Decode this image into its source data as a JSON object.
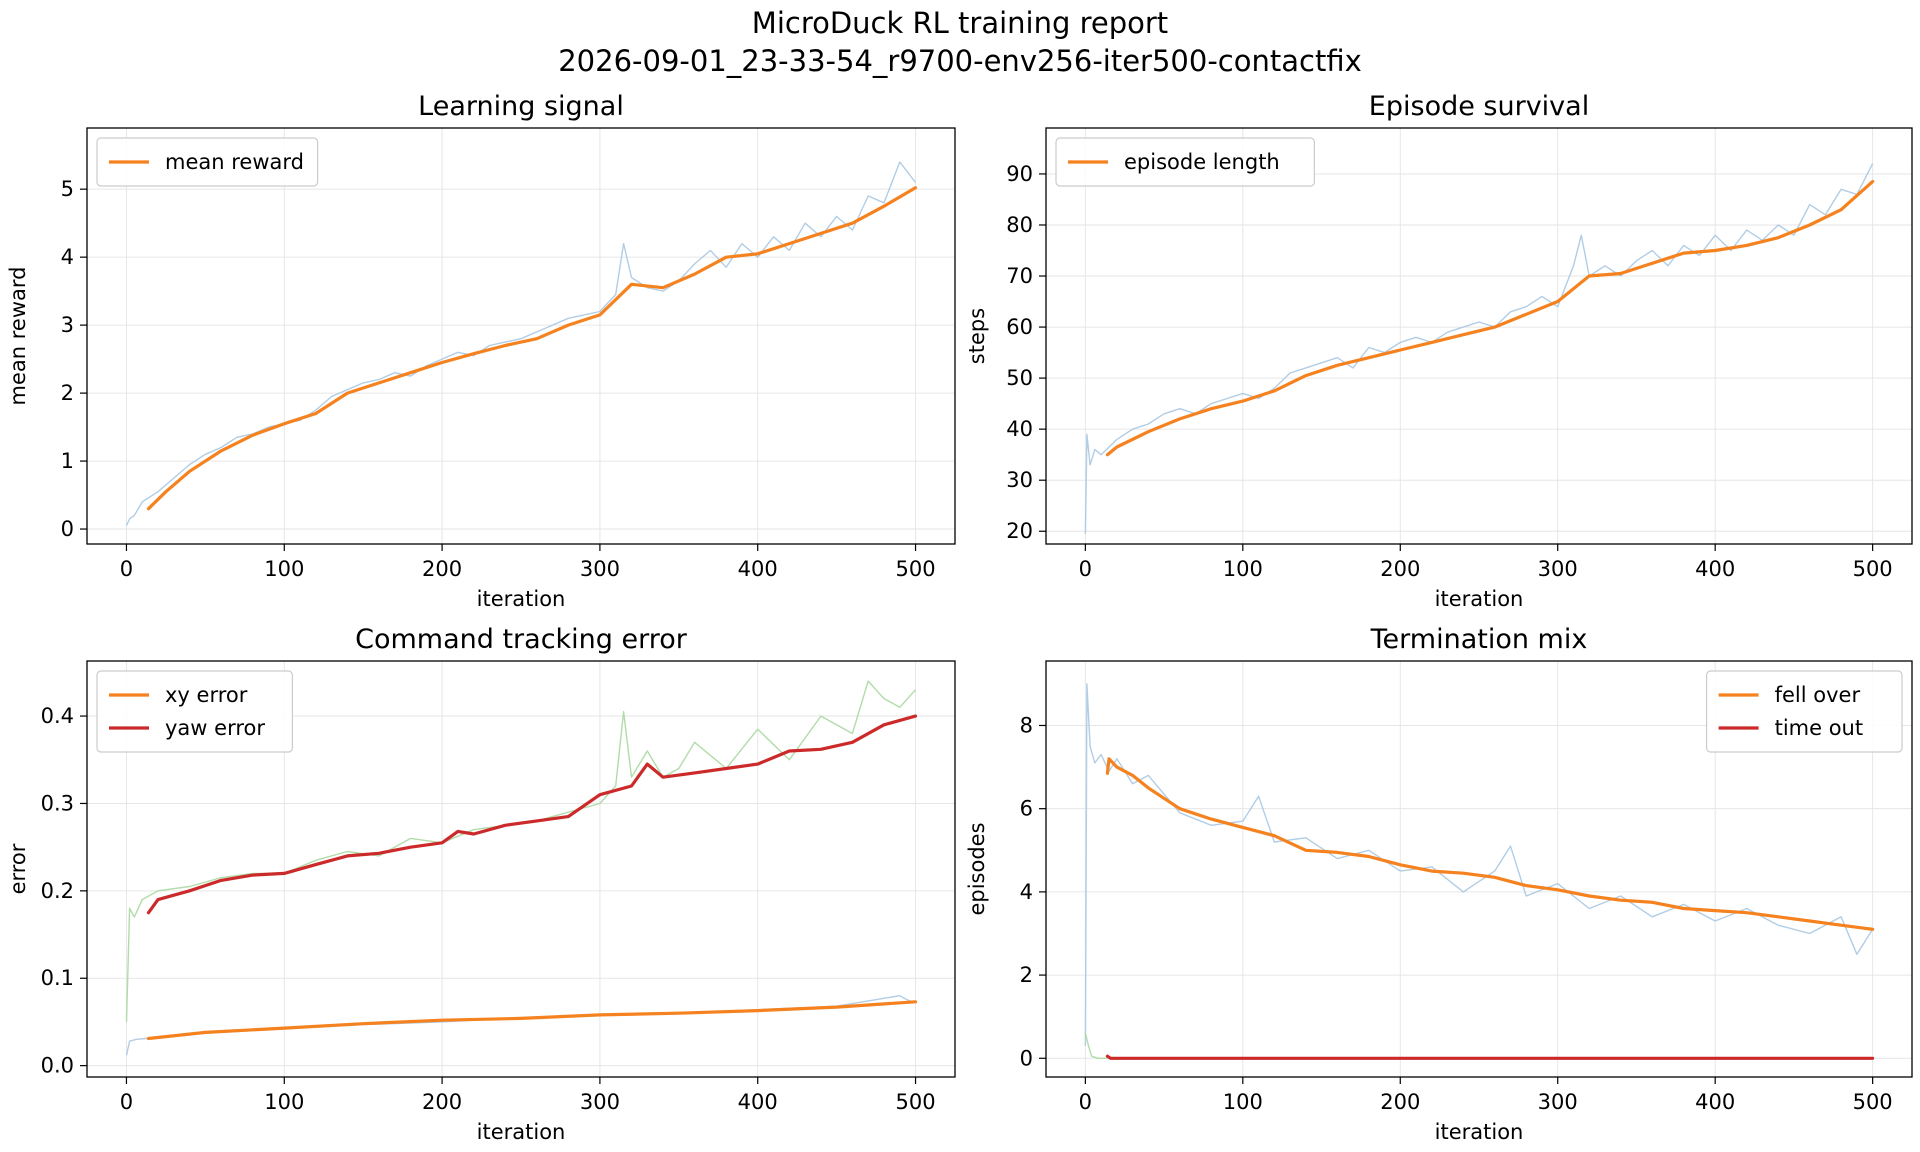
{
  "suptitle_line1": "MicroDuck RL training report",
  "suptitle_line2": "2026-09-01_23-33-54_r9700-env256-iter500-contactfix",
  "colors": {
    "orange": "#f5821f",
    "red": "#cc2a2a",
    "raw_blue": "#a8c8e2",
    "raw_green": "#a8d8a0",
    "grid": "#e6e6e6",
    "axis": "#000000"
  },
  "chart_data": [
    {
      "type": "line",
      "title": "Learning signal",
      "xlabel": "iteration",
      "ylabel": "mean reward",
      "xlim": [
        -25,
        525
      ],
      "ylim": [
        -0.22,
        5.9
      ],
      "xticks": [
        0,
        100,
        200,
        300,
        400,
        500
      ],
      "yticks": [
        0,
        1,
        2,
        3,
        4,
        5
      ],
      "grid": true,
      "legend": "top-left",
      "series": [
        {
          "name": "mean reward",
          "role": "smoothed",
          "color": "orange",
          "x": [
            14,
            25,
            40,
            60,
            80,
            100,
            120,
            140,
            160,
            180,
            200,
            220,
            240,
            260,
            280,
            300,
            320,
            340,
            360,
            380,
            400,
            420,
            440,
            460,
            480,
            500
          ],
          "y": [
            0.3,
            0.55,
            0.85,
            1.15,
            1.38,
            1.55,
            1.7,
            2.0,
            2.15,
            2.3,
            2.45,
            2.58,
            2.7,
            2.8,
            3.0,
            3.15,
            3.6,
            3.55,
            3.75,
            4.0,
            4.05,
            4.2,
            4.35,
            4.5,
            4.75,
            5.02
          ]
        }
      ],
      "raw": {
        "color": "raw_blue",
        "start": [
          0,
          0.05
        ],
        "x": [
          2,
          5,
          10,
          20,
          30,
          40,
          50,
          60,
          70,
          80,
          90,
          100,
          110,
          120,
          130,
          140,
          150,
          160,
          170,
          180,
          190,
          200,
          210,
          220,
          230,
          240,
          250,
          260,
          270,
          280,
          290,
          300,
          310,
          315,
          320,
          330,
          340,
          350,
          360,
          370,
          380,
          390,
          400,
          410,
          420,
          430,
          440,
          450,
          460,
          470,
          480,
          490,
          500
        ],
        "y": [
          0.15,
          0.2,
          0.4,
          0.55,
          0.75,
          0.95,
          1.1,
          1.2,
          1.35,
          1.4,
          1.5,
          1.55,
          1.6,
          1.75,
          1.95,
          2.05,
          2.15,
          2.2,
          2.3,
          2.25,
          2.4,
          2.5,
          2.6,
          2.55,
          2.7,
          2.75,
          2.8,
          2.9,
          3.0,
          3.1,
          3.15,
          3.2,
          3.45,
          4.2,
          3.7,
          3.55,
          3.5,
          3.65,
          3.9,
          4.1,
          3.85,
          4.2,
          4.0,
          4.3,
          4.1,
          4.5,
          4.3,
          4.6,
          4.4,
          4.9,
          4.8,
          5.4,
          5.1
        ]
      }
    },
    {
      "type": "line",
      "title": "Episode survival",
      "xlabel": "iteration",
      "ylabel": "steps",
      "xlim": [
        -25,
        525
      ],
      "ylim": [
        17.5,
        99
      ],
      "xticks": [
        0,
        100,
        200,
        300,
        400,
        500
      ],
      "yticks": [
        20,
        30,
        40,
        50,
        60,
        70,
        80,
        90
      ],
      "grid": true,
      "legend": "top-left",
      "series": [
        {
          "name": "episode length",
          "role": "smoothed",
          "color": "orange",
          "x": [
            14,
            20,
            40,
            60,
            80,
            100,
            120,
            140,
            160,
            180,
            200,
            220,
            240,
            260,
            280,
            300,
            320,
            340,
            360,
            380,
            400,
            420,
            440,
            460,
            480,
            500
          ],
          "y": [
            35,
            36.5,
            39.5,
            42,
            44,
            45.5,
            47.5,
            50.5,
            52.5,
            54,
            55.5,
            57,
            58.5,
            60,
            62.5,
            65,
            70,
            70.5,
            72.5,
            74.5,
            75,
            76,
            77.5,
            80,
            83,
            88.5
          ]
        }
      ],
      "raw": {
        "color": "raw_blue",
        "start": [
          0,
          19.5
        ],
        "x": [
          1,
          3,
          6,
          10,
          20,
          30,
          40,
          50,
          60,
          70,
          80,
          90,
          100,
          110,
          120,
          130,
          140,
          150,
          160,
          170,
          180,
          190,
          200,
          210,
          220,
          230,
          240,
          250,
          260,
          270,
          280,
          290,
          300,
          310,
          315,
          320,
          330,
          340,
          350,
          360,
          370,
          380,
          390,
          400,
          410,
          420,
          430,
          440,
          450,
          460,
          470,
          480,
          490,
          500
        ],
        "y": [
          39,
          33,
          36,
          35,
          38,
          40,
          41,
          43,
          44,
          43,
          45,
          46,
          47,
          46,
          48,
          51,
          52,
          53,
          54,
          52,
          56,
          55,
          57,
          58,
          57,
          59,
          60,
          61,
          60,
          63,
          64,
          66,
          64,
          72,
          78,
          70,
          72,
          70,
          73,
          75,
          72,
          76,
          74,
          78,
          75,
          79,
          77,
          80,
          78,
          84,
          82,
          87,
          86,
          92
        ]
      }
    },
    {
      "type": "line",
      "title": "Command tracking error",
      "xlabel": "iteration",
      "ylabel": "error",
      "xlim": [
        -25,
        525
      ],
      "ylim": [
        -0.013,
        0.463
      ],
      "xticks": [
        0,
        100,
        200,
        300,
        400,
        500
      ],
      "yticks": [
        0.0,
        0.1,
        0.2,
        0.3,
        0.4
      ],
      "ytick_labels": [
        "0.0",
        "0.1",
        "0.2",
        "0.3",
        "0.4"
      ],
      "grid": true,
      "legend": "top-left",
      "series": [
        {
          "name": "xy error",
          "role": "smoothed",
          "color": "orange",
          "x": [
            14,
            50,
            100,
            150,
            200,
            250,
            300,
            350,
            400,
            450,
            500
          ],
          "y": [
            0.031,
            0.038,
            0.043,
            0.048,
            0.052,
            0.054,
            0.058,
            0.06,
            0.063,
            0.067,
            0.073
          ]
        },
        {
          "name": "yaw error",
          "role": "smoothed",
          "color": "red",
          "x": [
            14,
            20,
            40,
            60,
            80,
            100,
            120,
            140,
            160,
            180,
            200,
            210,
            220,
            240,
            260,
            280,
            300,
            320,
            330,
            340,
            360,
            380,
            400,
            420,
            440,
            460,
            480,
            500
          ],
          "y": [
            0.175,
            0.19,
            0.2,
            0.212,
            0.218,
            0.22,
            0.23,
            0.24,
            0.243,
            0.25,
            0.255,
            0.268,
            0.265,
            0.275,
            0.28,
            0.285,
            0.31,
            0.32,
            0.345,
            0.33,
            0.335,
            0.34,
            0.345,
            0.36,
            0.362,
            0.37,
            0.39,
            0.4
          ]
        }
      ],
      "raw": [
        {
          "color": "raw_blue",
          "start": [
            0,
            0.012
          ],
          "x": [
            2,
            6,
            12,
            50,
            100,
            150,
            200,
            250,
            300,
            350,
            400,
            450,
            490,
            495,
            500
          ],
          "y": [
            0.028,
            0.03,
            0.031,
            0.037,
            0.042,
            0.047,
            0.05,
            0.055,
            0.058,
            0.06,
            0.064,
            0.068,
            0.08,
            0.075,
            0.072
          ]
        },
        {
          "color": "raw_green",
          "start": [
            0,
            0.05
          ],
          "x": [
            2,
            5,
            10,
            20,
            40,
            60,
            80,
            100,
            120,
            140,
            160,
            180,
            200,
            220,
            240,
            260,
            280,
            300,
            310,
            315,
            320,
            330,
            340,
            350,
            360,
            380,
            400,
            420,
            440,
            460,
            470,
            480,
            490,
            500
          ],
          "y": [
            0.18,
            0.17,
            0.19,
            0.2,
            0.205,
            0.215,
            0.22,
            0.22,
            0.235,
            0.245,
            0.24,
            0.26,
            0.255,
            0.27,
            0.275,
            0.28,
            0.29,
            0.3,
            0.32,
            0.405,
            0.33,
            0.36,
            0.33,
            0.34,
            0.37,
            0.34,
            0.385,
            0.35,
            0.4,
            0.38,
            0.44,
            0.42,
            0.41,
            0.43
          ]
        }
      ]
    },
    {
      "type": "line",
      "title": "Termination mix",
      "xlabel": "iteration",
      "ylabel": "episodes",
      "xlim": [
        -25,
        525
      ],
      "ylim": [
        -0.45,
        9.55
      ],
      "xticks": [
        0,
        100,
        200,
        300,
        400,
        500
      ],
      "yticks": [
        0,
        2,
        4,
        6,
        8
      ],
      "grid": true,
      "legend": "top-right",
      "series": [
        {
          "name": "fell over",
          "role": "smoothed",
          "color": "orange",
          "x": [
            14,
            15,
            20,
            30,
            40,
            60,
            80,
            100,
            120,
            140,
            160,
            180,
            200,
            220,
            240,
            260,
            280,
            300,
            320,
            340,
            360,
            380,
            400,
            420,
            440,
            460,
            480,
            500
          ],
          "y": [
            6.85,
            7.2,
            7.0,
            6.8,
            6.5,
            6.0,
            5.75,
            5.55,
            5.35,
            5.0,
            4.95,
            4.85,
            4.65,
            4.5,
            4.45,
            4.35,
            4.15,
            4.05,
            3.9,
            3.8,
            3.75,
            3.6,
            3.55,
            3.5,
            3.4,
            3.3,
            3.2,
            3.1
          ]
        },
        {
          "name": "time out",
          "role": "smoothed",
          "color": "red",
          "x": [
            14,
            16,
            500
          ],
          "y": [
            0.05,
            0.0,
            0.0
          ]
        }
      ],
      "raw": [
        {
          "color": "raw_blue",
          "start": [
            0,
            0.3
          ],
          "x": [
            1,
            3,
            6,
            10,
            15,
            20,
            30,
            40,
            60,
            80,
            100,
            110,
            120,
            140,
            160,
            180,
            200,
            220,
            240,
            260,
            270,
            280,
            300,
            320,
            340,
            360,
            380,
            400,
            420,
            440,
            460,
            480,
            490,
            500
          ],
          "y": [
            9.0,
            7.5,
            7.1,
            7.3,
            6.9,
            7.2,
            6.6,
            6.8,
            5.9,
            5.6,
            5.7,
            6.3,
            5.2,
            5.3,
            4.8,
            5.0,
            4.5,
            4.6,
            4.0,
            4.5,
            5.1,
            3.9,
            4.2,
            3.6,
            3.9,
            3.4,
            3.7,
            3.3,
            3.6,
            3.2,
            3.0,
            3.4,
            2.5,
            3.1
          ]
        },
        {
          "color": "raw_green",
          "start": [
            0,
            0.6
          ],
          "x": [
            2,
            4,
            8,
            12,
            14
          ],
          "y": [
            0.3,
            0.05,
            0.0,
            0.0,
            0.0
          ]
        }
      ]
    }
  ]
}
